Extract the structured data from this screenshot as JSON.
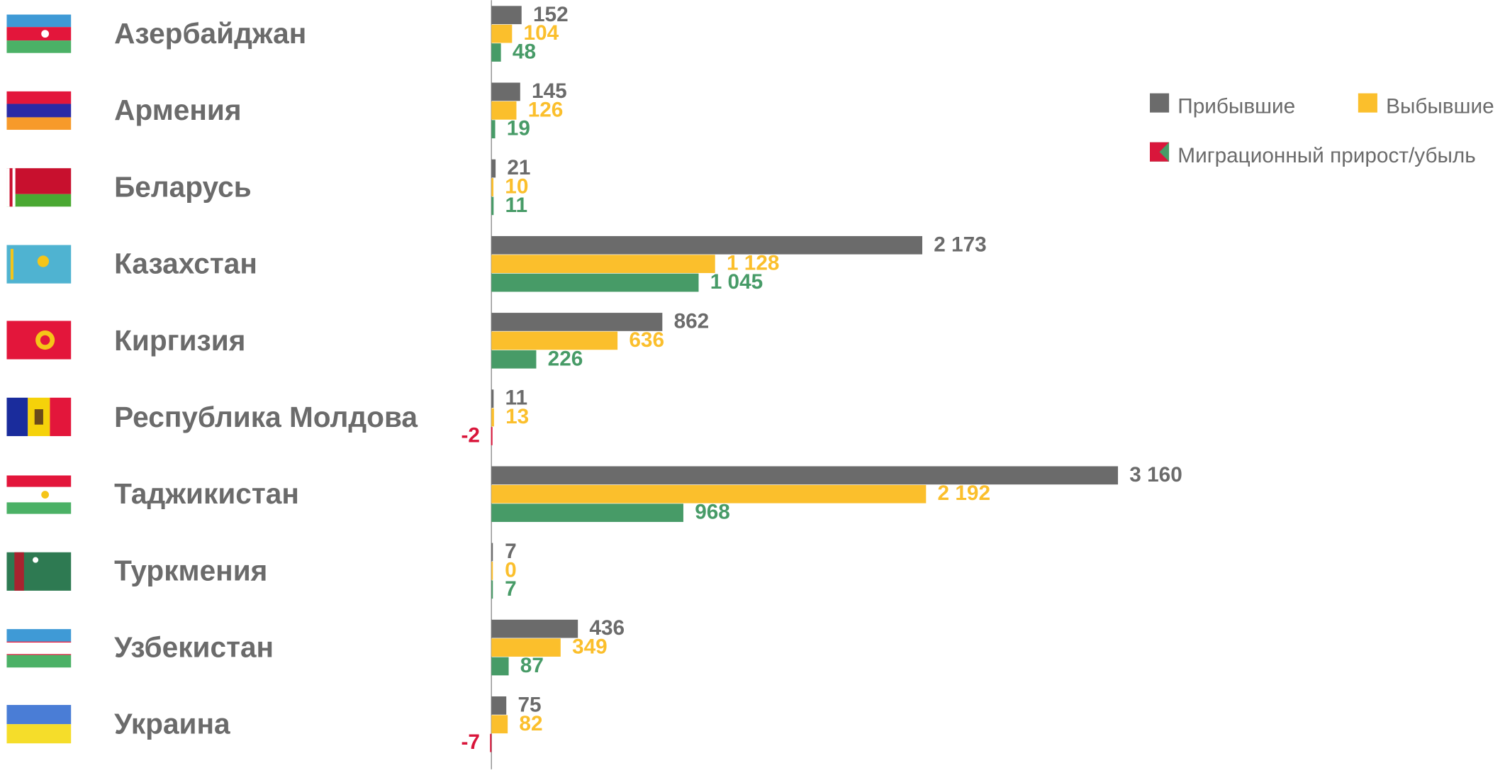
{
  "chart_data": {
    "type": "hbar",
    "categories": [
      "Азербайджан",
      "Армения",
      "Беларусь",
      "Казахстан",
      "Киргизия",
      "Республика Молдова",
      "Таджикистан",
      "Туркмения",
      "Узбекистан",
      "Украина"
    ],
    "series": [
      {
        "name": "Прибывшие",
        "color": "#6b6b6b",
        "values": [
          152,
          145,
          21,
          2173,
          862,
          11,
          3160,
          7,
          436,
          75
        ],
        "value_labels": [
          "152",
          "145",
          "21",
          "2 173",
          "862",
          "11",
          "3 160",
          "7",
          "436",
          "75"
        ]
      },
      {
        "name": "Выбывшие",
        "color": "#fbbf2c",
        "values": [
          104,
          126,
          10,
          1128,
          636,
          13,
          2192,
          0,
          349,
          82
        ],
        "value_labels": [
          "104",
          "126",
          "10",
          "1 128",
          "636",
          "13",
          "2 192",
          "0",
          "349",
          "82"
        ]
      },
      {
        "name": "Миграционный прирост/убыль",
        "color": "#479b67",
        "negative_color": "#d9163b",
        "values": [
          48,
          19,
          11,
          1045,
          226,
          -2,
          968,
          7,
          87,
          -7
        ],
        "value_labels": [
          "48",
          "19",
          "11",
          "1 045",
          "226",
          "-2",
          "968",
          "7",
          "87",
          "-7"
        ]
      }
    ],
    "xlim": [
      0,
      3500
    ]
  }
}
